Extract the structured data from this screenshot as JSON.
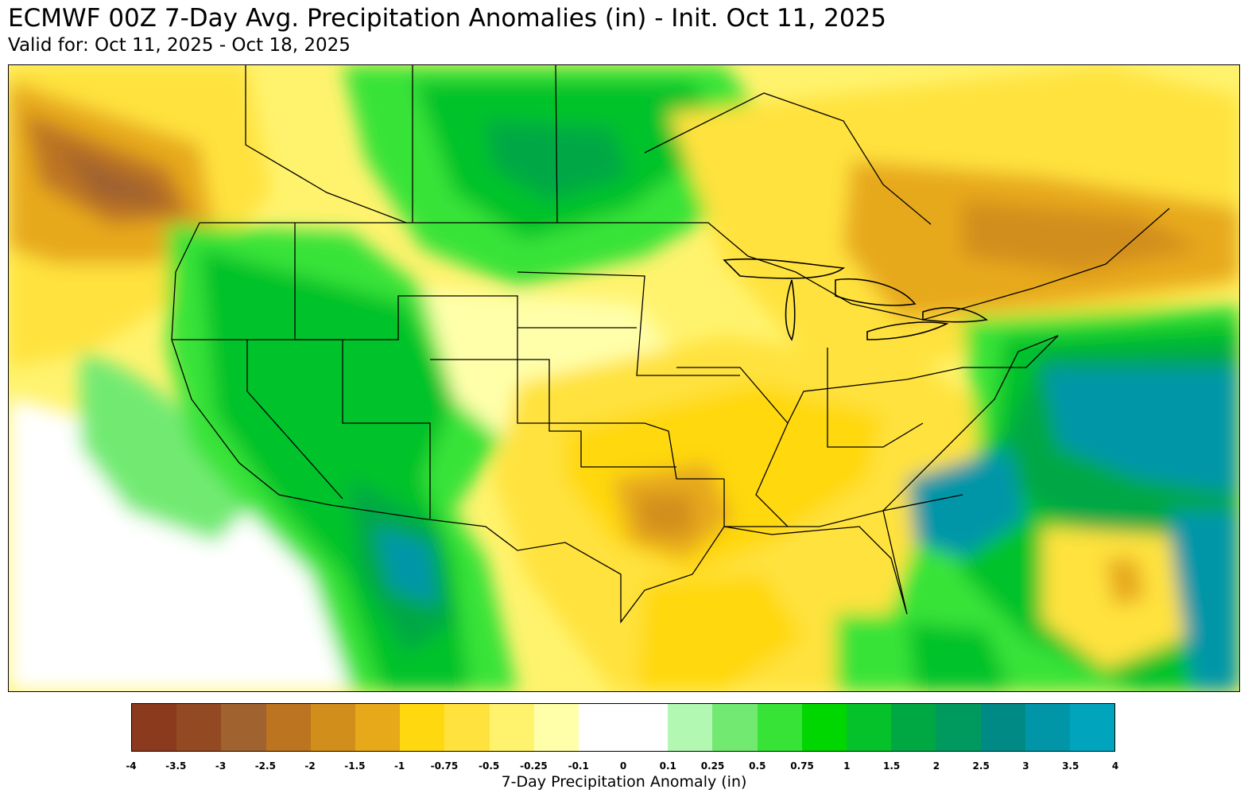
{
  "title": "ECMWF 00Z 7-Day Avg. Precipitation Anomalies (in) - Init. Oct 11, 2025",
  "subtitle": "Valid for: Oct 11, 2025 - Oct 18, 2025",
  "colorbar": {
    "label": "7-Day Precipitation Anomaly (in)",
    "ticks": [
      "-4",
      "-3.5",
      "-3",
      "-2.5",
      "-2",
      "-1.5",
      "-1",
      "-0.75",
      "-0.5",
      "-0.25",
      "-0.1",
      "0",
      "0.1",
      "0.25",
      "0.5",
      "0.75",
      "1",
      "1.5",
      "2",
      "2.5",
      "3",
      "3.5",
      "4"
    ],
    "colors": [
      "#8b3a1e",
      "#934a22",
      "#a0622e",
      "#bd7420",
      "#d28e1a",
      "#e7a91a",
      "#ffd80f",
      "#ffe23e",
      "#fff36e",
      "#ffffaa",
      "#ffffff",
      "#ffffff",
      "#b2f7b2",
      "#72ea72",
      "#37e337",
      "#00d600",
      "#06c22a",
      "#00a844",
      "#009a5e",
      "#008a86",
      "#0096a8",
      "#00a5bd"
    ]
  },
  "map": {
    "region": "Continental United States",
    "colors": {
      "dry_strong": "#a0622e",
      "dry_mid": "#e7a91a",
      "dry_light": "#ffe23e",
      "dry_faint": "#fff36e",
      "wet_light": "#72ea72",
      "wet_mid": "#37e337",
      "wet_strong": "#06c22a",
      "wet_heavy": "#0096a8"
    }
  }
}
